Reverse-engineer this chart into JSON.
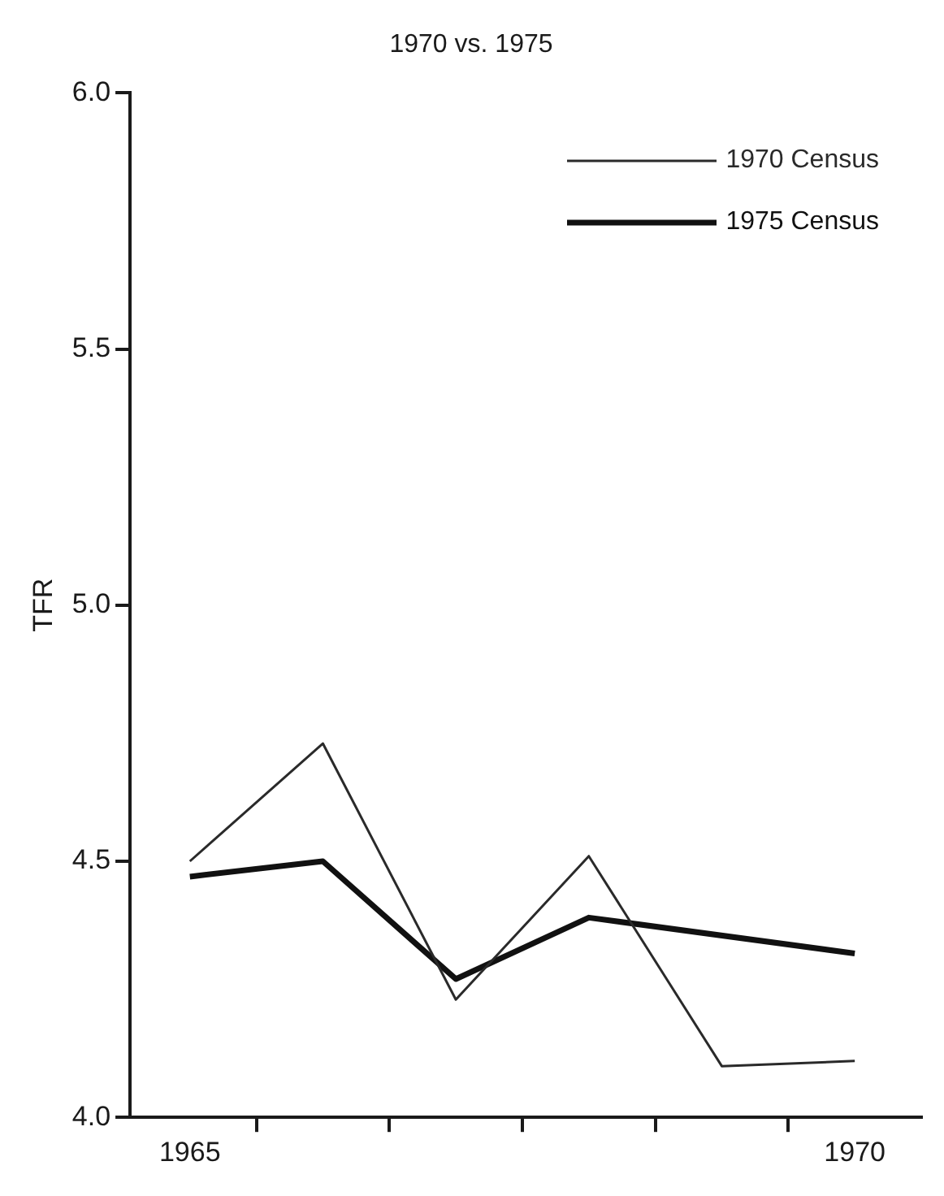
{
  "chart_data": {
    "type": "line",
    "title": "1970 vs. 1975",
    "ylabel": "TFR",
    "xlim": [
      1964.55,
      1970.5
    ],
    "xticks": [
      {
        "value": 1965,
        "label": "1965"
      },
      {
        "value": 1965.5,
        "label": null
      },
      {
        "value": 1966.5,
        "label": null
      },
      {
        "value": 1967.5,
        "label": null
      },
      {
        "value": 1968.5,
        "label": null
      },
      {
        "value": 1969.5,
        "label": null
      },
      {
        "value": 1970,
        "label": "1970"
      }
    ],
    "ylim": [
      4,
      6
    ],
    "yticks": [
      {
        "value": 4,
        "label": "4.0"
      },
      4.5,
      {
        "value": 5,
        "label": "5.0"
      },
      5.5,
      {
        "value": 6,
        "label": "6.0"
      }
    ],
    "series": [
      {
        "name": "1970 Census",
        "color": "#2a2a2a",
        "x": [
          1965,
          1966,
          1967,
          1968,
          1969,
          1970
        ],
        "values": [
          4.5,
          4.73,
          4.23,
          4.51,
          4.1,
          4.11
        ]
      },
      {
        "name": "1975 Census",
        "color": "#111111",
        "x": [
          1965,
          1966,
          1967,
          1968,
          1970
        ],
        "values": [
          4.47,
          4.5,
          4.27,
          4.39,
          4.32
        ]
      }
    ],
    "grid": false,
    "legend": "top right",
    "marker": "none",
    "line_style": "solid"
  }
}
